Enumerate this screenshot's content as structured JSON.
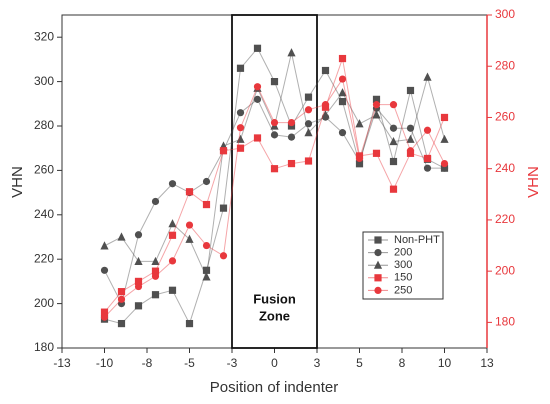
{
  "chart_data": {
    "type": "line",
    "x_label": "Position of indenter",
    "y_label": "VHN",
    "y2_label": "VHN",
    "x": [
      -10,
      -9,
      -8,
      -7,
      -6,
      -5,
      -4,
      -3,
      -2,
      -1,
      0,
      1,
      2,
      3,
      4,
      5,
      6,
      7,
      8,
      9,
      10
    ],
    "series": [
      {
        "name": "Non-PHT",
        "color": "#505050",
        "marker": "square",
        "axis": "y",
        "values": [
          193,
          191,
          199,
          204,
          206,
          191,
          215,
          243,
          306,
          315,
          300,
          280,
          293,
          305,
          291,
          263,
          292,
          264,
          296,
          265,
          261
        ]
      },
      {
        "name": "200",
        "color": "#505050",
        "marker": "circle",
        "axis": "y",
        "values": [
          215,
          200,
          231,
          246,
          254,
          250,
          255,
          269,
          286,
          292,
          276,
          275,
          281,
          284,
          277,
          264,
          288,
          279,
          279,
          261,
          261
        ]
      },
      {
        "name": "300",
        "color": "#505050",
        "marker": "triangle",
        "axis": "y",
        "values": [
          226,
          230,
          219,
          219,
          236,
          229,
          212,
          271,
          274,
          297,
          280,
          313,
          277,
          285,
          295,
          281,
          285,
          273,
          274,
          302,
          274
        ]
      },
      {
        "name": "150",
        "color": "#e8383d",
        "marker": "square",
        "axis": "y2",
        "values": [
          184,
          192,
          196,
          200,
          214,
          231,
          226,
          247,
          248,
          252,
          240,
          242,
          243,
          264,
          283,
          245,
          246,
          232,
          246,
          244,
          260
        ]
      },
      {
        "name": "250",
        "color": "#e8383d",
        "marker": "circle",
        "axis": "y2",
        "values": [
          182,
          189,
          194,
          198,
          204,
          218,
          210,
          206,
          256,
          272,
          258,
          258,
          263,
          265,
          275,
          244,
          265,
          265,
          247,
          255,
          242
        ]
      }
    ],
    "xlim": [
      -12.5,
      12.5
    ],
    "xticks": [
      {
        "value": -12.5,
        "label": "-13"
      },
      -10,
      {
        "value": -7.5,
        "label": "-8"
      },
      -5,
      {
        "value": -2.5,
        "label": "-3"
      },
      0,
      {
        "value": 2.5,
        "label": "3"
      },
      5,
      {
        "value": 7.5,
        "label": "8"
      },
      10,
      {
        "value": 12.5,
        "label": "13"
      }
    ],
    "ylim": [
      180,
      330
    ],
    "yticks": [
      180,
      200,
      220,
      240,
      260,
      280,
      300,
      320
    ],
    "y2lim": [
      170,
      300
    ],
    "y2ticks": [
      180,
      200,
      220,
      240,
      260,
      280,
      300
    ],
    "y2_color": "#e8383d",
    "annotation": {
      "lines": [
        "Fusion",
        "Zone"
      ],
      "x": [
        -2.5,
        2.5
      ]
    },
    "legend": "lower right"
  }
}
